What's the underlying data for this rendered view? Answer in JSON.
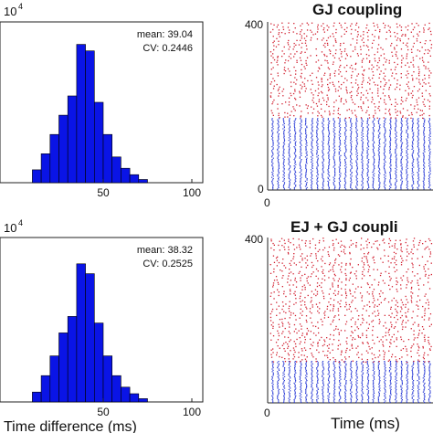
{
  "colors": {
    "bar": "#0a14e6",
    "red_spikes": "#d11f2f",
    "blue_spikes": "#2a3bd6",
    "axis": "#222222"
  },
  "chart_data": [
    {
      "type": "bar",
      "panel": "top-left",
      "exponent_label": "10",
      "exponent_power": "4",
      "annotations": [
        "mean: 39.04",
        "CV: 0.2446"
      ],
      "xlabel": "",
      "xticks": [
        "50",
        "100"
      ],
      "xlim": [
        0,
        100
      ],
      "ylim": [
        0,
        1
      ],
      "bin_width": 5,
      "bins": [
        10,
        15,
        20,
        25,
        30,
        35,
        40,
        45,
        50,
        55,
        60,
        65,
        70
      ],
      "values": [
        0.08,
        0.18,
        0.3,
        0.42,
        0.54,
        0.86,
        0.82,
        0.5,
        0.3,
        0.16,
        0.09,
        0.05,
        0.02
      ]
    },
    {
      "type": "bar",
      "panel": "bottom-left",
      "exponent_label": "10",
      "exponent_power": "4",
      "annotations": [
        "mean: 38.32",
        "CV: 0.2525"
      ],
      "xlabel": "Time difference (ms)",
      "xticks": [
        "50",
        "100"
      ],
      "xlim": [
        0,
        100
      ],
      "ylim": [
        0,
        1
      ],
      "bin_width": 5,
      "bins": [
        10,
        15,
        20,
        25,
        30,
        35,
        40,
        45,
        50,
        55,
        60,
        65,
        70
      ],
      "values": [
        0.06,
        0.16,
        0.28,
        0.42,
        0.52,
        0.84,
        0.78,
        0.48,
        0.28,
        0.16,
        0.09,
        0.05,
        0.02
      ]
    },
    {
      "type": "scatter",
      "panel": "top-right",
      "title": "GJ coupling",
      "xlabel": "",
      "yticks": [
        "0",
        "400"
      ],
      "xticks": [
        "0"
      ],
      "ylim": [
        0,
        400
      ],
      "n_columns": 29,
      "red_range": [
        170,
        400
      ],
      "blue_range": [
        0,
        170
      ]
    },
    {
      "type": "scatter",
      "panel": "bottom-right",
      "title": "EJ + GJ coupli",
      "xlabel": "Time (ms)",
      "yticks": [
        "400"
      ],
      "xticks": [
        "0"
      ],
      "ylim": [
        0,
        400
      ],
      "n_columns": 29,
      "red_range": [
        100,
        400
      ],
      "blue_range": [
        0,
        100
      ]
    }
  ]
}
